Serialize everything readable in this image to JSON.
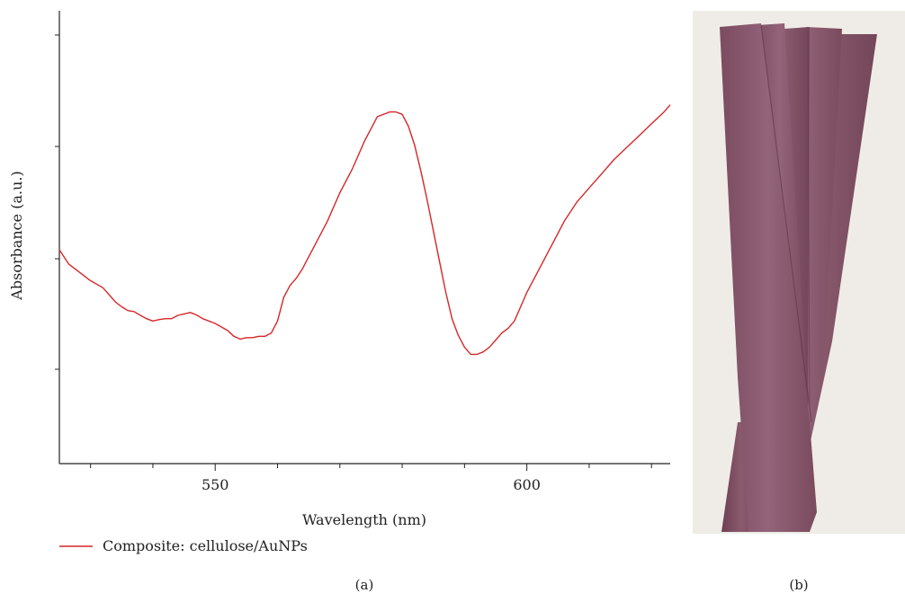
{
  "chart_data": {
    "type": "line",
    "xlabel": "Wavelength (nm)",
    "ylabel": "Absorbance (a.u.)",
    "xlim": [
      525,
      623
    ],
    "x_ticks": [
      550,
      600
    ],
    "x_minor_ticks": [
      530,
      540,
      560,
      570,
      580,
      590,
      610,
      620
    ],
    "y_ticks_labeled": false,
    "y_tick_count": 4,
    "grid": false,
    "legend_position": "bottom-left",
    "series": [
      {
        "name": "Composite: cellulose/AuNPs",
        "color": "#d62728",
        "x": [
          525.0,
          526.5,
          528.0,
          530.0,
          532.0,
          534.0,
          535.0,
          536.0,
          537.0,
          538.0,
          539.0,
          540.0,
          541.0,
          542.0,
          543.0,
          544.0,
          545.0,
          546.0,
          547.0,
          548.0,
          550.0,
          552.0,
          553.0,
          554.0,
          555.0,
          556.0,
          557.0,
          558.0,
          559.0,
          560.0,
          561.0,
          562.0,
          563.0,
          564.0,
          565.0,
          566.0,
          568.0,
          570.0,
          572.0,
          574.0,
          576.0,
          578.0,
          579.0,
          580.0,
          581.0,
          582.0,
          583.0,
          584.0,
          585.0,
          586.0,
          587.0,
          588.0,
          589.0,
          590.0,
          591.0,
          592.0,
          593.0,
          594.0,
          595.0,
          596.0,
          597.0,
          598.0,
          599.0,
          600.0,
          602.0,
          604.0,
          606.0,
          608.0,
          610.0,
          612.0,
          614.0,
          616.0,
          618.0,
          620.0,
          622.0,
          623.0
        ],
        "y": [
          0.55,
          0.52,
          0.505,
          0.485,
          0.47,
          0.44,
          0.43,
          0.422,
          0.42,
          0.412,
          0.405,
          0.4,
          0.403,
          0.405,
          0.405,
          0.412,
          0.415,
          0.418,
          0.413,
          0.405,
          0.395,
          0.38,
          0.368,
          0.362,
          0.365,
          0.365,
          0.368,
          0.368,
          0.375,
          0.4,
          0.45,
          0.475,
          0.49,
          0.51,
          0.535,
          0.56,
          0.61,
          0.67,
          0.72,
          0.78,
          0.83,
          0.84,
          0.84,
          0.835,
          0.81,
          0.77,
          0.715,
          0.655,
          0.59,
          0.525,
          0.46,
          0.405,
          0.37,
          0.345,
          0.33,
          0.33,
          0.335,
          0.345,
          0.36,
          0.375,
          0.385,
          0.4,
          0.43,
          0.46,
          0.51,
          0.56,
          0.61,
          0.65,
          0.68,
          0.71,
          0.74,
          0.765,
          0.79,
          0.815,
          0.84,
          0.855
        ]
      }
    ]
  },
  "panel_labels": {
    "a": "(a)",
    "b": "(b)"
  },
  "photo": {
    "description_colors": {
      "background": "#efece7",
      "strip": "#8a5a6c",
      "strip_dark": "#7a4a5e",
      "strip_light": "#9b6b7c"
    }
  }
}
